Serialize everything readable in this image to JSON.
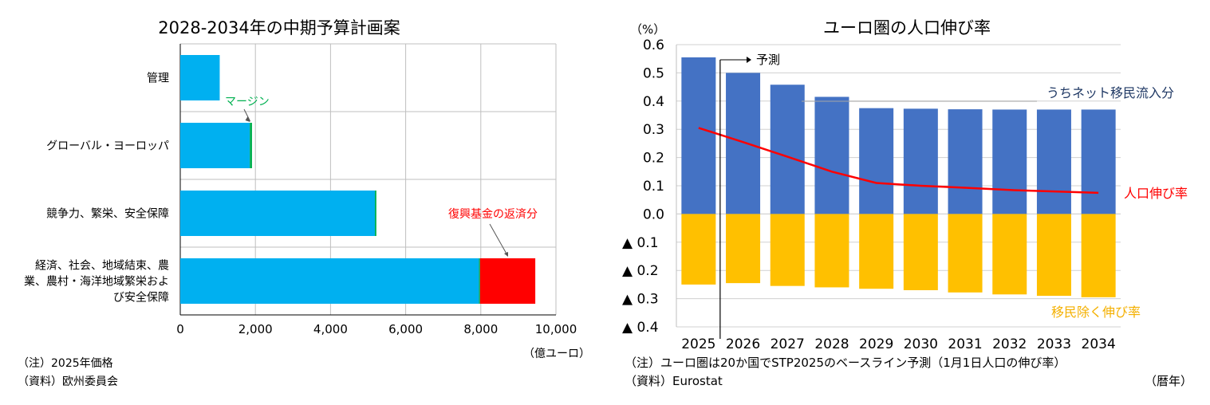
{
  "chart_data": [
    {
      "type": "bar",
      "orientation": "horizontal",
      "stacked": true,
      "title": "2028-2034年の中期予算計画案",
      "categories": [
        "管理",
        "グローバル・ヨーロッパ",
        "競争力、繁栄、安全保障",
        "経済、社会、地域結束、農業、農村・海洋地域繁栄および安全保障"
      ],
      "category_lines": [
        [
          "管理"
        ],
        [
          "グローバル・ヨーロッパ"
        ],
        [
          "競争力、繁栄、安全保障"
        ],
        [
          "経済、社会、地域結束、農",
          "業、農村・海洋地域繁栄およ",
          "び安全保障"
        ]
      ],
      "series": [
        {
          "name": "",
          "color": "#00B0F0",
          "values": [
            1050,
            1850,
            5180,
            7950
          ]
        },
        {
          "name": "マージン",
          "color": "#00B050",
          "values": [
            0,
            60,
            40,
            30
          ]
        },
        {
          "name": "復興基金の返済分",
          "color": "#FF0000",
          "values": [
            0,
            0,
            0,
            1470
          ]
        }
      ],
      "xlim": [
        0,
        10000
      ],
      "xticks": [
        0,
        2000,
        4000,
        6000,
        8000,
        10000
      ],
      "xtick_labels": [
        "0",
        "2,000",
        "4,000",
        "6,000",
        "8,000",
        "10,000"
      ],
      "unit_label": "（億ユーロ）",
      "annotations": [
        {
          "text": "マージン",
          "color": "#00B050",
          "points_to": "グローバル・ヨーロッパ"
        },
        {
          "text": "復興基金の返済分",
          "color": "#FF0000",
          "points_to": "経済、社会、地域結束、農業、農村・海洋地域繁栄および安全保障"
        }
      ],
      "notes": [
        "（注）2025年価格",
        "（資料）欧州委員会"
      ],
      "grid": true
    },
    {
      "type": "bar+line",
      "stacked": true,
      "title": "ユーロ圏の人口伸び率",
      "ylabel": "（%）",
      "x_unit": "（暦年）",
      "categories": [
        "2025",
        "2026",
        "2027",
        "2028",
        "2029",
        "2030",
        "2031",
        "2032",
        "2033",
        "2034"
      ],
      "series": [
        {
          "name": "うちネット移民流入分",
          "type": "bar",
          "color": "#4472C4",
          "values": [
            0.555,
            0.5,
            0.458,
            0.415,
            0.375,
            0.373,
            0.371,
            0.37,
            0.37,
            0.37
          ]
        },
        {
          "name": "移民除く伸び率",
          "type": "bar",
          "color": "#FFC000",
          "values": [
            -0.25,
            -0.245,
            -0.255,
            -0.26,
            -0.265,
            -0.27,
            -0.278,
            -0.285,
            -0.29,
            -0.295
          ]
        },
        {
          "name": "人口伸び率",
          "type": "line",
          "color": "#FF0000",
          "values": [
            0.305,
            0.255,
            0.203,
            0.15,
            0.11,
            0.1,
            0.093,
            0.085,
            0.08,
            0.075
          ]
        }
      ],
      "ylim": [
        -0.4,
        0.6
      ],
      "yticks": [
        0.6,
        0.5,
        0.4,
        0.3,
        0.2,
        0.1,
        0.0,
        -0.1,
        -0.2,
        -0.3,
        -0.4
      ],
      "ytick_labels": [
        "0.6",
        "0.5",
        "0.4",
        "0.3",
        "0.2",
        "0.1",
        "0.0",
        "▲ 0.1",
        "▲ 0.2",
        "▲ 0.3",
        "▲ 0.4"
      ],
      "forecast_label": "予測",
      "forecast_start": "2025",
      "notes": [
        "（注）ユーロ圏は20か国でSTP2025のベースライン予測（1月1日人口の伸び率）",
        "（資料）Eurostat"
      ],
      "grid": true
    }
  ]
}
